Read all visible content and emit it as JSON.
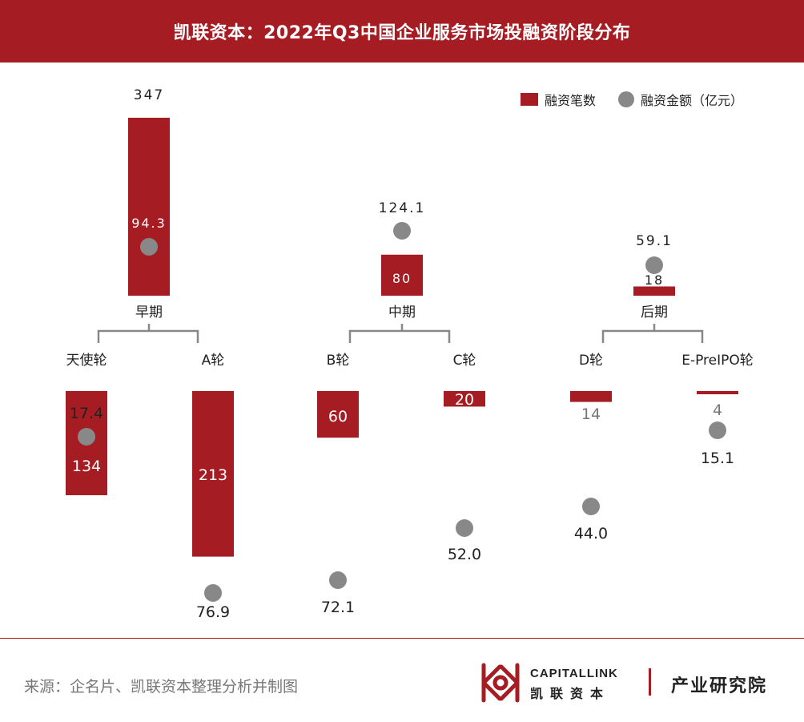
{
  "header": {
    "title": "凯联资本：2022年Q3中国企业服务市场投融资阶段分布"
  },
  "legend": {
    "count": "融资笔数",
    "amount": "融资金额（亿元）"
  },
  "colors": {
    "bar": "#a51d23",
    "dot": "#888888",
    "header_bg": "#a51d23"
  },
  "chart_data": {
    "type": "bar",
    "title": "凯联资本：2022年Q3中国企业服务市场投融资阶段分布",
    "legend": [
      "融资笔数",
      "融资金额（亿元）"
    ],
    "groups": [
      {
        "label": "早期",
        "count": 347,
        "amount": 94.3,
        "count_label": "347",
        "amount_label": "94.3",
        "children": [
          {
            "label": "天使轮",
            "count": 134,
            "amount": 17.4,
            "count_label": "134",
            "amount_label": "17.4"
          },
          {
            "label": "A轮",
            "count": 213,
            "amount": 76.9,
            "count_label": "213",
            "amount_label": "76.9"
          }
        ]
      },
      {
        "label": "中期",
        "count": 80,
        "amount": 124.1,
        "count_label": "80",
        "amount_label": "124.1",
        "children": [
          {
            "label": "B轮",
            "count": 60,
            "amount": 72.1,
            "count_label": "60",
            "amount_label": "72.1"
          },
          {
            "label": "C轮",
            "count": 20,
            "amount": 52.0,
            "count_label": "20",
            "amount_label": "52.0"
          }
        ]
      },
      {
        "label": "后期",
        "count": 18,
        "amount": 59.1,
        "count_label": "18",
        "amount_label": "59.1",
        "children": [
          {
            "label": "D轮",
            "count": 14,
            "amount": 44.0,
            "count_label": "14",
            "amount_label": "44.0"
          },
          {
            "label": "E-PreIPO轮",
            "count": 4,
            "amount": 15.1,
            "count_label": "4",
            "amount_label": "15.1"
          }
        ]
      }
    ]
  },
  "footer": {
    "source": "来源：企名片、凯联资本整理分析并制图",
    "logo_en": "CAPITALLINK",
    "logo_cn": "凯联资本",
    "logo_inst": "产业研究院"
  }
}
